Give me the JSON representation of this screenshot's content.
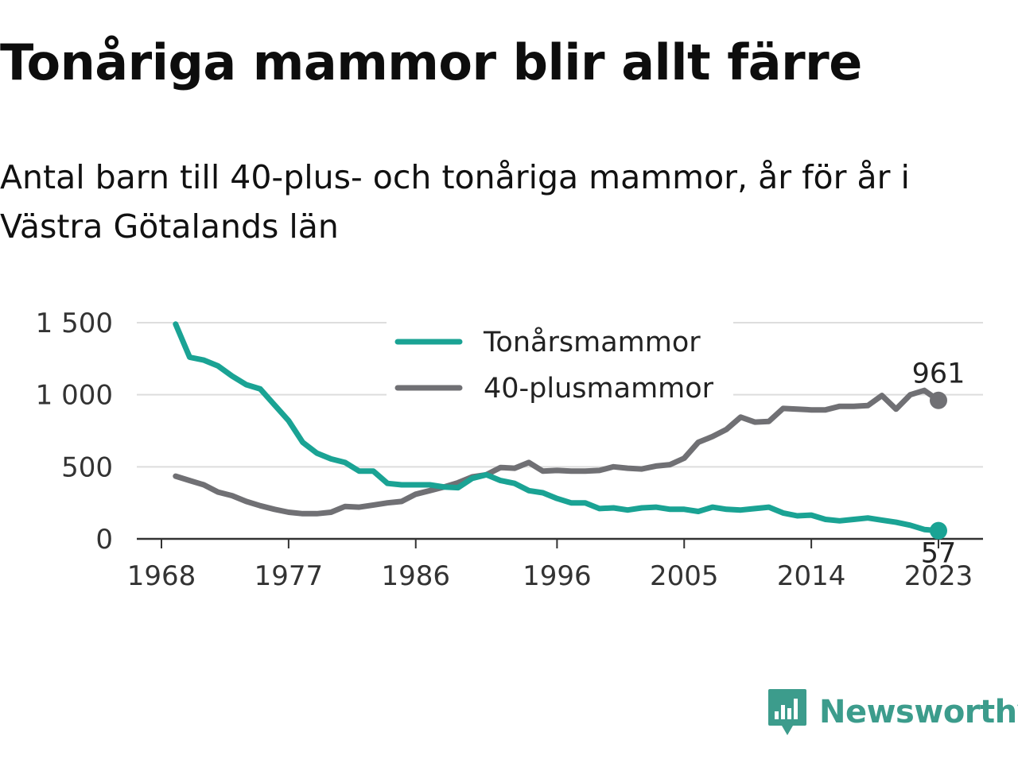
{
  "title": "Tonåriga mammor blir allt färre",
  "subtitle": "Antal barn till 40-plus- och tonåriga mammor, år för år i Västra Götalands län",
  "brand": {
    "name": "Newsworthy",
    "color": "#3c9c8c",
    "icon": "bar-chart-speech-bubble-icon"
  },
  "chart_data": {
    "type": "line",
    "x": [
      1969,
      1970,
      1971,
      1972,
      1973,
      1974,
      1975,
      1976,
      1977,
      1978,
      1979,
      1980,
      1981,
      1982,
      1983,
      1984,
      1985,
      1986,
      1987,
      1988,
      1989,
      1990,
      1991,
      1992,
      1993,
      1994,
      1995,
      1996,
      1997,
      1998,
      1999,
      2000,
      2001,
      2002,
      2003,
      2004,
      2005,
      2006,
      2007,
      2008,
      2009,
      2010,
      2011,
      2012,
      2013,
      2014,
      2015,
      2016,
      2017,
      2018,
      2019,
      2020,
      2021,
      2022,
      2023
    ],
    "series": [
      {
        "name": "Tonårsmammor",
        "color": "#1aa394",
        "values": [
          1490,
          1260,
          1240,
          1200,
          1130,
          1070,
          1040,
          930,
          820,
          670,
          595,
          555,
          530,
          470,
          470,
          385,
          375,
          375,
          375,
          360,
          355,
          420,
          445,
          405,
          385,
          335,
          320,
          280,
          250,
          250,
          210,
          215,
          200,
          215,
          220,
          205,
          205,
          190,
          220,
          205,
          200,
          210,
          220,
          180,
          160,
          165,
          135,
          125,
          135,
          145,
          130,
          115,
          95,
          65,
          57
        ],
        "end_label": "57"
      },
      {
        "name": "40-plusmammor",
        "color": "#707074",
        "values": [
          435,
          405,
          375,
          325,
          300,
          260,
          230,
          205,
          185,
          175,
          175,
          185,
          225,
          220,
          235,
          250,
          260,
          310,
          335,
          360,
          390,
          430,
          445,
          495,
          490,
          530,
          470,
          475,
          470,
          470,
          475,
          500,
          490,
          485,
          505,
          515,
          560,
          670,
          710,
          760,
          845,
          810,
          815,
          905,
          900,
          895,
          895,
          920,
          920,
          925,
          995,
          900,
          1000,
          1030,
          961
        ],
        "end_label": "961"
      }
    ],
    "xticks": [
      "1968",
      "1977",
      "1986",
      "1996",
      "2005",
      "2014",
      "2023"
    ],
    "yticks": [
      "0",
      "500",
      "1 000",
      "1 500"
    ],
    "ylim": [
      0,
      1500
    ],
    "grid": true,
    "legend_position": "top-center"
  }
}
